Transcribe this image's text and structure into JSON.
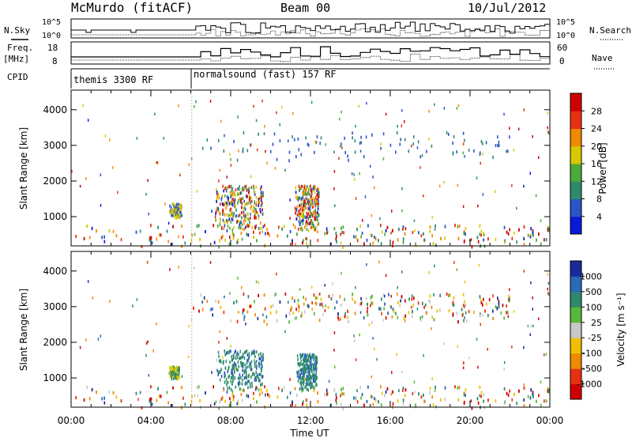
{
  "header": {
    "station": "McMurdo (fitACF)",
    "beam": "Beam 00",
    "date": "10/Jul/2012"
  },
  "left_labels": {
    "nsky": "N.Sky",
    "freq_line1": "Freq.",
    "freq_line2": "[MHz]",
    "cpid": "CPID"
  },
  "right_labels": {
    "nsearch": "N.Search",
    "nave": "Nave"
  },
  "noise_axis": {
    "top": "10^5",
    "bottom": "10^0"
  },
  "freq_axis": {
    "top": "18",
    "bottom": "8"
  },
  "nave_axis": {
    "top": "60",
    "bottom": "0"
  },
  "cpid_segments": [
    {
      "label": "themis 3300 RF",
      "start_hour": 0.0,
      "end_hour": 6.05
    },
    {
      "label": "normalsound (fast) 157 RF",
      "start_hour": 6.05,
      "end_hour": 24.0
    }
  ],
  "time_axis": {
    "label": "Time UT",
    "ticks": [
      "00:00",
      "04:00",
      "08:00",
      "12:00",
      "16:00",
      "20:00",
      "00:00"
    ]
  },
  "range_axis": {
    "label": "Slant Range [km]",
    "ticks": [
      "1000",
      "2000",
      "3000",
      "4000"
    ]
  },
  "power_colorbar": {
    "label": "Power [dB]",
    "ticks": [
      "4",
      "8",
      "12",
      "16",
      "20",
      "24",
      "28"
    ],
    "colors": [
      "#0a1ad8",
      "#2a55c8",
      "#2e8a6e",
      "#4aaa3a",
      "#d8c800",
      "#f08a00",
      "#e83010",
      "#d00000"
    ]
  },
  "velocity_colorbar": {
    "label": "Velocity [m s⁻¹]",
    "ticks": [
      "1000",
      "500",
      "100",
      "25",
      "-25",
      "-100",
      "-500",
      "-1000"
    ],
    "colors": [
      "#1a2a9a",
      "#2a6ab8",
      "#2e8a6e",
      "#58b83a",
      "#c8c8c8",
      "#f0c000",
      "#f08a00",
      "#e83010",
      "#d00000"
    ]
  },
  "chart_data": [
    {
      "type": "heatmap",
      "title": "Power",
      "xlabel": "Time UT",
      "ylabel": "Slant Range [km]",
      "xlim": [
        0,
        24
      ],
      "ylim": [
        180,
        4550
      ],
      "colorbar": "Power [dB]",
      "regions": [
        {
          "t0": 7.2,
          "t1": 9.6,
          "r0": 700,
          "r1": 1900,
          "level": "high"
        },
        {
          "t0": 11.2,
          "t1": 12.4,
          "r0": 650,
          "r1": 1900,
          "level": "high"
        },
        {
          "t0": 4.9,
          "t1": 5.5,
          "r0": 1000,
          "r1": 1400,
          "level": "medium"
        },
        {
          "t0": 6.1,
          "t1": 22.0,
          "r0": 2600,
          "r1": 3400,
          "level": "low"
        },
        {
          "t0": 0.2,
          "t1": 24,
          "r0": 180,
          "r1": 800,
          "level": "mixed"
        }
      ]
    },
    {
      "type": "heatmap",
      "title": "Velocity",
      "xlabel": "Time UT",
      "ylabel": "Slant Range [km]",
      "xlim": [
        0,
        24
      ],
      "ylim": [
        180,
        4550
      ],
      "colorbar": "Velocity [m s⁻¹]",
      "regions": [
        {
          "t0": 7.3,
          "t1": 9.6,
          "r0": 700,
          "r1": 1800,
          "level": "green"
        },
        {
          "t0": 11.3,
          "t1": 12.3,
          "r0": 700,
          "r1": 1700,
          "level": "green"
        },
        {
          "t0": 4.9,
          "t1": 5.4,
          "r0": 1000,
          "r1": 1350,
          "level": "yellow"
        },
        {
          "t0": 6.1,
          "t1": 22.0,
          "r0": 2600,
          "r1": 3400,
          "level": "mixed"
        },
        {
          "t0": 0.2,
          "t1": 24,
          "r0": 180,
          "r1": 800,
          "level": "mixed"
        }
      ]
    }
  ]
}
